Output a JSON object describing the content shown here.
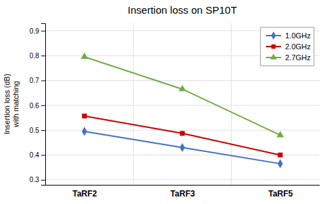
{
  "chart_data": {
    "type": "line",
    "title": "Insertion loss on SP10T",
    "ylabel": "Insertion loss (dB)\nwith matching",
    "categories": [
      "TaRF2",
      "TaRF3",
      "TaRF5"
    ],
    "series": [
      {
        "name": "1.0GHz",
        "color": "#4472C4",
        "marker": "diamond",
        "values": [
          0.495,
          0.43,
          0.365
        ]
      },
      {
        "name": "2.0GHz",
        "color": "#CC0000",
        "marker": "square",
        "values": [
          0.557,
          0.487,
          0.4
        ]
      },
      {
        "name": "2.7GHz",
        "color": "#70AD47",
        "marker": "triangle",
        "values": [
          0.795,
          0.665,
          0.48
        ]
      }
    ],
    "ylim": [
      0.28,
      0.93
    ],
    "yticks": [
      0.3,
      0.4,
      0.5,
      0.6,
      0.7,
      0.8,
      0.9
    ],
    "grid": true,
    "legend": "upper-right"
  }
}
